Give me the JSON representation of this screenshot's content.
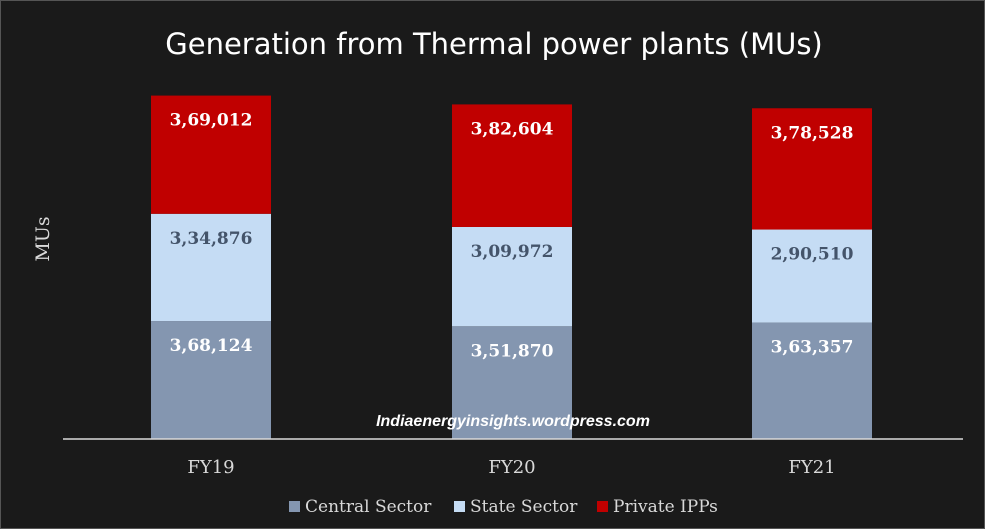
{
  "chart_data": {
    "type": "bar",
    "stacked": true,
    "title": "Generation from Thermal power plants (MUs)",
    "xlabel": "",
    "ylabel": "MUs",
    "categories": [
      "FY19",
      "FY20",
      "FY21"
    ],
    "ylim": [
      0,
      1130000
    ],
    "series": [
      {
        "name": "Central Sector",
        "color": "#8496b0",
        "label_color": "#ffffff",
        "values": [
          368124,
          351870,
          363357
        ],
        "labels": [
          "3,68,124",
          "3,51,870",
          "3,63,357"
        ]
      },
      {
        "name": "State Sector",
        "color": "#c5dcf4",
        "label_color": "#44546a",
        "values": [
          334876,
          309972,
          290510
        ],
        "labels": [
          "3,34,876",
          "3,09,972",
          "2,90,510"
        ]
      },
      {
        "name": "Private IPPs",
        "color": "#c00000",
        "label_color": "#ffffff",
        "values": [
          369012,
          382604,
          378528
        ],
        "labels": [
          "3,69,012",
          "3,82,604",
          "3,78,528"
        ]
      }
    ],
    "legend_position": "bottom",
    "grid": false,
    "watermark": "Indiaenergyinsights.wordpress.com"
  }
}
